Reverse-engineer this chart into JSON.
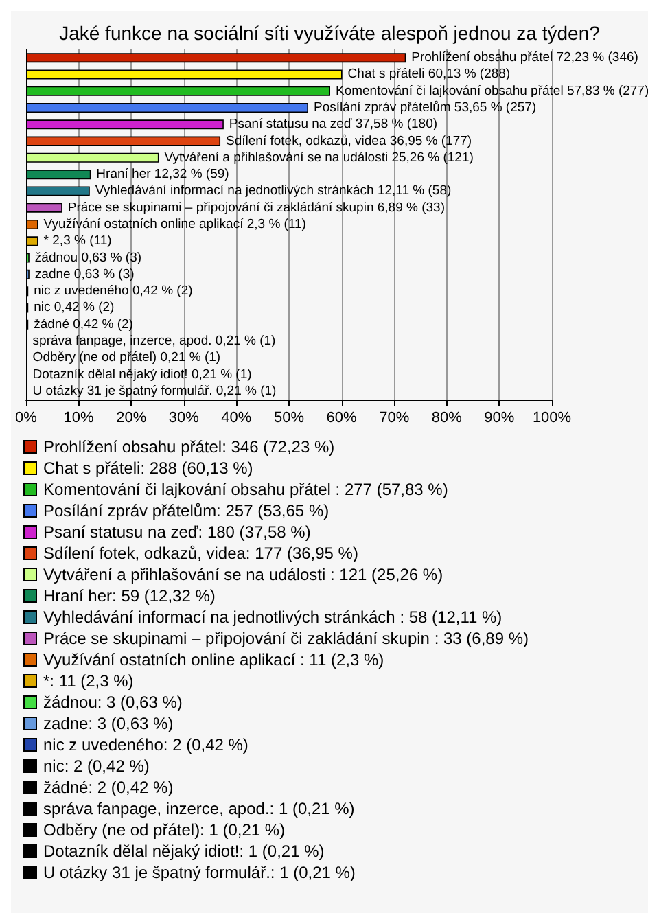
{
  "chart_data": {
    "type": "bar",
    "orientation": "horizontal",
    "title": "Jaké funkce na sociální síti využíváte alespoň jednou za týden?",
    "categories": [
      null,
      null,
      null,
      null,
      null,
      null,
      null,
      null,
      null,
      null,
      null,
      null,
      null,
      null,
      null,
      null,
      null,
      null,
      null,
      null,
      null
    ],
    "xlim": [
      0,
      100
    ],
    "xticks": [
      {
        "value": 0,
        "label": "0%"
      },
      {
        "value": 10,
        "label": "10%"
      },
      {
        "value": 20,
        "label": "20%"
      },
      {
        "value": 30,
        "label": "30%"
      },
      {
        "value": 40,
        "label": "40%"
      },
      {
        "value": 50,
        "label": "50%"
      },
      {
        "value": 60,
        "label": "60%"
      },
      {
        "value": 70,
        "label": "70%"
      },
      {
        "value": 80,
        "label": "80%"
      },
      {
        "value": 90,
        "label": "90%"
      },
      {
        "value": 100,
        "label": "100%"
      }
    ],
    "grid": "x",
    "legend": "bottom",
    "series": [
      {
        "name": "Prohlížení obsahu přátel: 346 (72,23 %)",
        "color": "#cc2200",
        "values": [
          72.23,
          null,
          null,
          null,
          null,
          null,
          null,
          null,
          null,
          null,
          null,
          null,
          null,
          null,
          null,
          null,
          null,
          null,
          null,
          null,
          null
        ],
        "value_labels": [
          "Prohlížení obsahu přátel 72,23 % (346)",
          null,
          null,
          null,
          null,
          null,
          null,
          null,
          null,
          null,
          null,
          null,
          null,
          null,
          null,
          null,
          null,
          null,
          null,
          null,
          null
        ]
      },
      {
        "name": "Chat s přáteli: 288 (60,13 %)",
        "color": "#ffee00",
        "values": [
          null,
          60.13,
          null,
          null,
          null,
          null,
          null,
          null,
          null,
          null,
          null,
          null,
          null,
          null,
          null,
          null,
          null,
          null,
          null,
          null,
          null
        ],
        "value_labels": [
          null,
          "Chat s přáteli 60,13 % (288)",
          null,
          null,
          null,
          null,
          null,
          null,
          null,
          null,
          null,
          null,
          null,
          null,
          null,
          null,
          null,
          null,
          null,
          null,
          null
        ]
      },
      {
        "name": "Komentování či lajkování obsahu přátel : 277 (57,83 %)",
        "color": "#22bb22",
        "values": [
          null,
          null,
          57.83,
          null,
          null,
          null,
          null,
          null,
          null,
          null,
          null,
          null,
          null,
          null,
          null,
          null,
          null,
          null,
          null,
          null,
          null
        ],
        "value_labels": [
          null,
          null,
          "Komentování či lajkování obsahu přátel 57,83 % (277)",
          null,
          null,
          null,
          null,
          null,
          null,
          null,
          null,
          null,
          null,
          null,
          null,
          null,
          null,
          null,
          null,
          null,
          null
        ]
      },
      {
        "name": "Posílání zpráv přátelům: 257 (53,65 %)",
        "color": "#4477ee",
        "values": [
          null,
          null,
          null,
          53.65,
          null,
          null,
          null,
          null,
          null,
          null,
          null,
          null,
          null,
          null,
          null,
          null,
          null,
          null,
          null,
          null,
          null
        ],
        "value_labels": [
          null,
          null,
          null,
          "Posílání zpráv přátelům 53,65 % (257)",
          null,
          null,
          null,
          null,
          null,
          null,
          null,
          null,
          null,
          null,
          null,
          null,
          null,
          null,
          null,
          null,
          null
        ]
      },
      {
        "name": "Psaní statusu na zeď: 180 (37,58 %)",
        "color": "#cc22cc",
        "values": [
          null,
          null,
          null,
          null,
          37.58,
          null,
          null,
          null,
          null,
          null,
          null,
          null,
          null,
          null,
          null,
          null,
          null,
          null,
          null,
          null,
          null
        ],
        "value_labels": [
          null,
          null,
          null,
          null,
          "Psaní statusu na zeď 37,58 % (180)",
          null,
          null,
          null,
          null,
          null,
          null,
          null,
          null,
          null,
          null,
          null,
          null,
          null,
          null,
          null,
          null
        ]
      },
      {
        "name": "Sdílení fotek, odkazů, videa: 177 (36,95 %)",
        "color": "#dd4411",
        "values": [
          null,
          null,
          null,
          null,
          null,
          36.95,
          null,
          null,
          null,
          null,
          null,
          null,
          null,
          null,
          null,
          null,
          null,
          null,
          null,
          null,
          null
        ],
        "value_labels": [
          null,
          null,
          null,
          null,
          null,
          "Sdílení fotek, odkazů, videa 36,95 % (177)",
          null,
          null,
          null,
          null,
          null,
          null,
          null,
          null,
          null,
          null,
          null,
          null,
          null,
          null,
          null
        ]
      },
      {
        "name": "Vytváření a přihlašování se na události : 121 (25,26 %)",
        "color": "#ccff88",
        "values": [
          null,
          null,
          null,
          null,
          null,
          null,
          25.26,
          null,
          null,
          null,
          null,
          null,
          null,
          null,
          null,
          null,
          null,
          null,
          null,
          null,
          null
        ],
        "value_labels": [
          null,
          null,
          null,
          null,
          null,
          null,
          "Vytváření a přihlašování se na události 25,26 % (121)",
          null,
          null,
          null,
          null,
          null,
          null,
          null,
          null,
          null,
          null,
          null,
          null,
          null,
          null
        ]
      },
      {
        "name": "Hraní her: 59 (12,32 %)",
        "color": "#118855",
        "values": [
          null,
          null,
          null,
          null,
          null,
          null,
          null,
          12.32,
          null,
          null,
          null,
          null,
          null,
          null,
          null,
          null,
          null,
          null,
          null,
          null,
          null
        ],
        "value_labels": [
          null,
          null,
          null,
          null,
          null,
          null,
          null,
          "Hraní her 12,32 % (59)",
          null,
          null,
          null,
          null,
          null,
          null,
          null,
          null,
          null,
          null,
          null,
          null,
          null
        ]
      },
      {
        "name": "Vyhledávání informací na jednotlivých stránkách : 58 (12,11 %)",
        "color": "#227788",
        "values": [
          null,
          null,
          null,
          null,
          null,
          null,
          null,
          null,
          12.11,
          null,
          null,
          null,
          null,
          null,
          null,
          null,
          null,
          null,
          null,
          null,
          null
        ],
        "value_labels": [
          null,
          null,
          null,
          null,
          null,
          null,
          null,
          null,
          "Vyhledávání informací na jednotlivých stránkách 12,11 % (58)",
          null,
          null,
          null,
          null,
          null,
          null,
          null,
          null,
          null,
          null,
          null,
          null
        ]
      },
      {
        "name": "Práce se skupinami – připojování či zakládání skupin : 33 (6,89 %)",
        "color": "#bb55bb",
        "values": [
          null,
          null,
          null,
          null,
          null,
          null,
          null,
          null,
          null,
          6.89,
          null,
          null,
          null,
          null,
          null,
          null,
          null,
          null,
          null,
          null,
          null
        ],
        "value_labels": [
          null,
          null,
          null,
          null,
          null,
          null,
          null,
          null,
          null,
          "Práce se skupinami – připojování či zakládání skupin 6,89 % (33)",
          null,
          null,
          null,
          null,
          null,
          null,
          null,
          null,
          null,
          null,
          null
        ]
      },
      {
        "name": "Využívání ostatních online aplikací : 11 (2,3 %)",
        "color": "#dd6600",
        "values": [
          null,
          null,
          null,
          null,
          null,
          null,
          null,
          null,
          null,
          null,
          2.3,
          null,
          null,
          null,
          null,
          null,
          null,
          null,
          null,
          null,
          null
        ],
        "value_labels": [
          null,
          null,
          null,
          null,
          null,
          null,
          null,
          null,
          null,
          null,
          "Využívání ostatních online aplikací 2,3 % (11)",
          null,
          null,
          null,
          null,
          null,
          null,
          null,
          null,
          null,
          null
        ]
      },
      {
        "name": "*: 11 (2,3 %)",
        "color": "#ddaa00",
        "values": [
          null,
          null,
          null,
          null,
          null,
          null,
          null,
          null,
          null,
          null,
          null,
          2.3,
          null,
          null,
          null,
          null,
          null,
          null,
          null,
          null,
          null
        ],
        "value_labels": [
          null,
          null,
          null,
          null,
          null,
          null,
          null,
          null,
          null,
          null,
          null,
          "* 2,3 % (11)",
          null,
          null,
          null,
          null,
          null,
          null,
          null,
          null,
          null
        ]
      },
      {
        "name": "žádnou: 3 (0,63 %)",
        "color": "#44dd44",
        "values": [
          null,
          null,
          null,
          null,
          null,
          null,
          null,
          null,
          null,
          null,
          null,
          null,
          0.63,
          null,
          null,
          null,
          null,
          null,
          null,
          null,
          null
        ],
        "value_labels": [
          null,
          null,
          null,
          null,
          null,
          null,
          null,
          null,
          null,
          null,
          null,
          null,
          "žádnou 0,63 % (3)",
          null,
          null,
          null,
          null,
          null,
          null,
          null,
          null
        ]
      },
      {
        "name": "zadne: 3 (0,63 %)",
        "color": "#6699dd",
        "values": [
          null,
          null,
          null,
          null,
          null,
          null,
          null,
          null,
          null,
          null,
          null,
          null,
          null,
          0.63,
          null,
          null,
          null,
          null,
          null,
          null,
          null
        ],
        "value_labels": [
          null,
          null,
          null,
          null,
          null,
          null,
          null,
          null,
          null,
          null,
          null,
          null,
          null,
          "zadne 0,63 % (3)",
          null,
          null,
          null,
          null,
          null,
          null,
          null
        ]
      },
      {
        "name": "nic z uvedeného: 2 (0,42 %)",
        "color": "#2244aa",
        "values": [
          null,
          null,
          null,
          null,
          null,
          null,
          null,
          null,
          null,
          null,
          null,
          null,
          null,
          null,
          0.42,
          null,
          null,
          null,
          null,
          null,
          null
        ],
        "value_labels": [
          null,
          null,
          null,
          null,
          null,
          null,
          null,
          null,
          null,
          null,
          null,
          null,
          null,
          null,
          "nic z uvedeného 0,42 % (2)",
          null,
          null,
          null,
          null,
          null,
          null
        ]
      },
      {
        "name": "nic: 2 (0,42 %)",
        "color": "#000000",
        "values": [
          null,
          null,
          null,
          null,
          null,
          null,
          null,
          null,
          null,
          null,
          null,
          null,
          null,
          null,
          null,
          0.42,
          null,
          null,
          null,
          null,
          null
        ],
        "value_labels": [
          null,
          null,
          null,
          null,
          null,
          null,
          null,
          null,
          null,
          null,
          null,
          null,
          null,
          null,
          null,
          "nic 0,42 % (2)",
          null,
          null,
          null,
          null,
          null
        ]
      },
      {
        "name": "žádné: 2 (0,42 %)",
        "color": "#000000",
        "values": [
          null,
          null,
          null,
          null,
          null,
          null,
          null,
          null,
          null,
          null,
          null,
          null,
          null,
          null,
          null,
          null,
          0.42,
          null,
          null,
          null,
          null
        ],
        "value_labels": [
          null,
          null,
          null,
          null,
          null,
          null,
          null,
          null,
          null,
          null,
          null,
          null,
          null,
          null,
          null,
          null,
          "žádné 0,42 % (2)",
          null,
          null,
          null,
          null
        ]
      },
      {
        "name": "správa fanpage, inzerce, apod.: 1 (0,21 %)",
        "color": "#000000",
        "values": [
          null,
          null,
          null,
          null,
          null,
          null,
          null,
          null,
          null,
          null,
          null,
          null,
          null,
          null,
          null,
          null,
          null,
          0.21,
          null,
          null,
          null
        ],
        "value_labels": [
          null,
          null,
          null,
          null,
          null,
          null,
          null,
          null,
          null,
          null,
          null,
          null,
          null,
          null,
          null,
          null,
          null,
          "správa fanpage, inzerce, apod. 0,21 % (1)",
          null,
          null,
          null
        ]
      },
      {
        "name": "Odběry (ne od přátel): 1 (0,21 %)",
        "color": "#000000",
        "values": [
          null,
          null,
          null,
          null,
          null,
          null,
          null,
          null,
          null,
          null,
          null,
          null,
          null,
          null,
          null,
          null,
          null,
          null,
          0.21,
          null,
          null
        ],
        "value_labels": [
          null,
          null,
          null,
          null,
          null,
          null,
          null,
          null,
          null,
          null,
          null,
          null,
          null,
          null,
          null,
          null,
          null,
          null,
          "Odběry (ne od přátel) 0,21 % (1)",
          null,
          null
        ]
      },
      {
        "name": "Dotazník dělal nějaký idiot!: 1 (0,21 %)",
        "color": "#000000",
        "values": [
          null,
          null,
          null,
          null,
          null,
          null,
          null,
          null,
          null,
          null,
          null,
          null,
          null,
          null,
          null,
          null,
          null,
          null,
          null,
          0.21,
          null
        ],
        "value_labels": [
          null,
          null,
          null,
          null,
          null,
          null,
          null,
          null,
          null,
          null,
          null,
          null,
          null,
          null,
          null,
          null,
          null,
          null,
          null,
          "Dotazník dělal nějaký idiot! 0,21 % (1)",
          null
        ]
      },
      {
        "name": "U otázky 31 je špatný formulář.: 1 (0,21 %)",
        "color": "#000000",
        "values": [
          null,
          null,
          null,
          null,
          null,
          null,
          null,
          null,
          null,
          null,
          null,
          null,
          null,
          null,
          null,
          null,
          null,
          null,
          null,
          null,
          0.21
        ],
        "value_labels": [
          null,
          null,
          null,
          null,
          null,
          null,
          null,
          null,
          null,
          null,
          null,
          null,
          null,
          null,
          null,
          null,
          null,
          null,
          null,
          null,
          "U otázky 31 je špatný formulář. 0,21 % (1)"
        ]
      }
    ]
  }
}
